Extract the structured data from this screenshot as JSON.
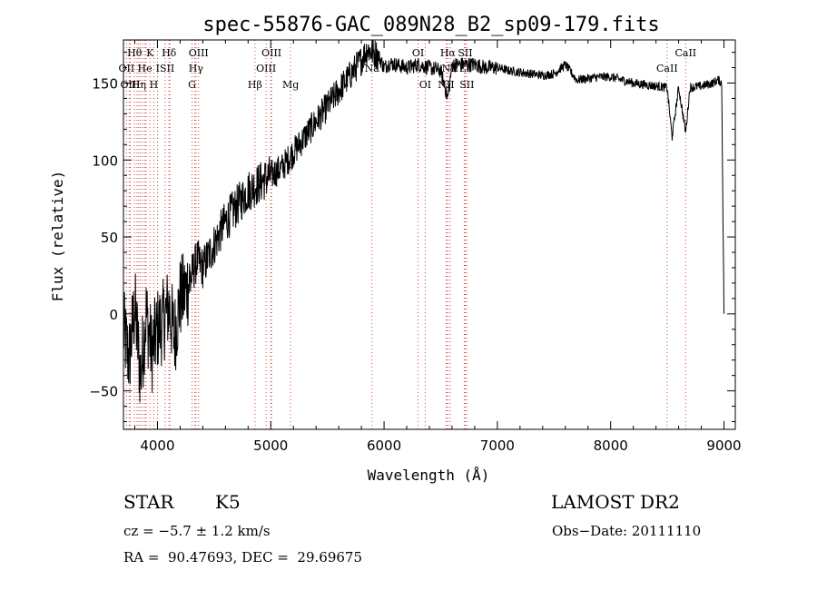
{
  "chart_data": {
    "type": "line",
    "title": "spec-55876-GAC_089N28_B2_sp09-179.fits",
    "xlabel": "Wavelength (Å)",
    "ylabel": "Flux (relative)",
    "xlim": [
      3700,
      9100
    ],
    "ylim": [
      -75,
      178
    ],
    "xticks": [
      4000,
      5000,
      6000,
      7000,
      8000,
      9000
    ],
    "yticks": [
      -50,
      0,
      50,
      100,
      150
    ],
    "grid": false,
    "line_color": "#000000",
    "marker_color": "#d04040",
    "series": [
      {
        "x": [
          3700,
          3750,
          3800,
          3850,
          3900,
          3950,
          4000,
          4050,
          4100,
          4150,
          4200,
          4250,
          4300,
          4350,
          4400,
          4500,
          4600,
          4700,
          4800,
          4900,
          5000,
          5100,
          5200,
          5300,
          5400,
          5500,
          5600,
          5700,
          5800,
          5850,
          5900,
          5950,
          6000,
          6050,
          6100,
          6200,
          6300,
          6400,
          6500,
          6563,
          6600,
          6700,
          6800,
          6900,
          7000,
          7100,
          7200,
          7300,
          7400,
          7500,
          7600,
          7700,
          7800,
          7900,
          8000,
          8100,
          8200,
          8300,
          8400,
          8498,
          8542,
          8600,
          8662,
          8700,
          8800,
          8900,
          8950,
          8980,
          9000
        ],
        "y": [
          -10,
          -30,
          5,
          -40,
          0,
          -25,
          -10,
          -5,
          5,
          -15,
          10,
          15,
          25,
          35,
          30,
          45,
          60,
          70,
          80,
          85,
          90,
          95,
          105,
          115,
          125,
          135,
          145,
          155,
          165,
          172,
          170,
          168,
          160,
          163,
          162,
          160,
          162,
          160,
          158,
          140,
          162,
          162,
          162,
          160,
          160,
          158,
          157,
          156,
          155,
          156,
          162,
          152,
          153,
          154,
          154,
          152,
          150,
          149,
          148,
          147,
          115,
          147,
          118,
          147,
          148,
          150,
          152,
          150,
          0
        ]
      }
    ],
    "lines_top": [
      {
        "label": "Hθ",
        "x": 3798
      },
      {
        "label": "K",
        "x": 3934
      },
      {
        "label": "Hδ",
        "x": 4102
      },
      {
        "label": "OIII",
        "x": 4363
      },
      {
        "label": "OIII",
        "x": 5007
      },
      {
        "label": "OI",
        "x": 6300
      },
      {
        "label": "Hα",
        "x": 6563
      },
      {
        "label": "SII",
        "x": 6716
      },
      {
        "label": "CaII",
        "x": 8662
      }
    ],
    "lines_mid": [
      {
        "label": "OII",
        "x": 3727
      },
      {
        "label": "He",
        "x": 3889
      },
      {
        "label": "ISII",
        "x": 4068
      },
      {
        "label": "Hγ",
        "x": 4340
      },
      {
        "label": "OIII",
        "x": 4959
      },
      {
        "label": "Na",
        "x": 5893
      },
      {
        "label": "NII",
        "x": 6583
      },
      {
        "label": "Li",
        "x": 6708
      },
      {
        "label": "CaII",
        "x": 8498
      }
    ],
    "lines_bot": [
      {
        "label": "OIII",
        "x": 3760
      },
      {
        "label": "Hη",
        "x": 3835
      },
      {
        "label": "H",
        "x": 3968
      },
      {
        "label": "G",
        "x": 4305
      },
      {
        "label": "Hβ",
        "x": 4861
      },
      {
        "label": "Mg",
        "x": 5175
      },
      {
        "label": "OI",
        "x": 6363
      },
      {
        "label": "NII",
        "x": 6548
      },
      {
        "label": "SII",
        "x": 6731
      }
    ],
    "extra_markers": [
      3700,
      3750,
      3820,
      3850,
      3870,
      3900,
      4000,
      4110,
      4330,
      5000,
      6560
    ]
  },
  "info": {
    "object_class": "STAR",
    "subclass": "K5",
    "survey": "LAMOST DR2",
    "redshift": "cz = −5.7 ± 1.2 km/s",
    "obs_date": "Obs−Date: 20111110",
    "coords": "RA =  90.47693, DEC =  29.69675"
  }
}
